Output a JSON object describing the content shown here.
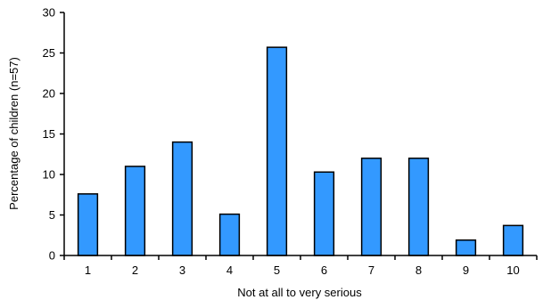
{
  "chart_data": {
    "type": "bar",
    "title": "",
    "xlabel": "Not at all to very serious",
    "ylabel": "Percentage of children (n=57)",
    "categories": [
      "1",
      "2",
      "3",
      "4",
      "5",
      "6",
      "7",
      "8",
      "9",
      "10"
    ],
    "values": [
      7.6,
      11.0,
      14.0,
      5.1,
      25.7,
      10.3,
      12.0,
      12.0,
      1.9,
      3.7
    ],
    "ylim": [
      0,
      30
    ],
    "yticks": [
      0,
      5,
      10,
      15,
      20,
      25,
      30
    ],
    "grid": false,
    "legend": "none",
    "colors": {
      "bar": "#3399ff",
      "bar_outline": "#000000",
      "axis": "#000000"
    }
  }
}
